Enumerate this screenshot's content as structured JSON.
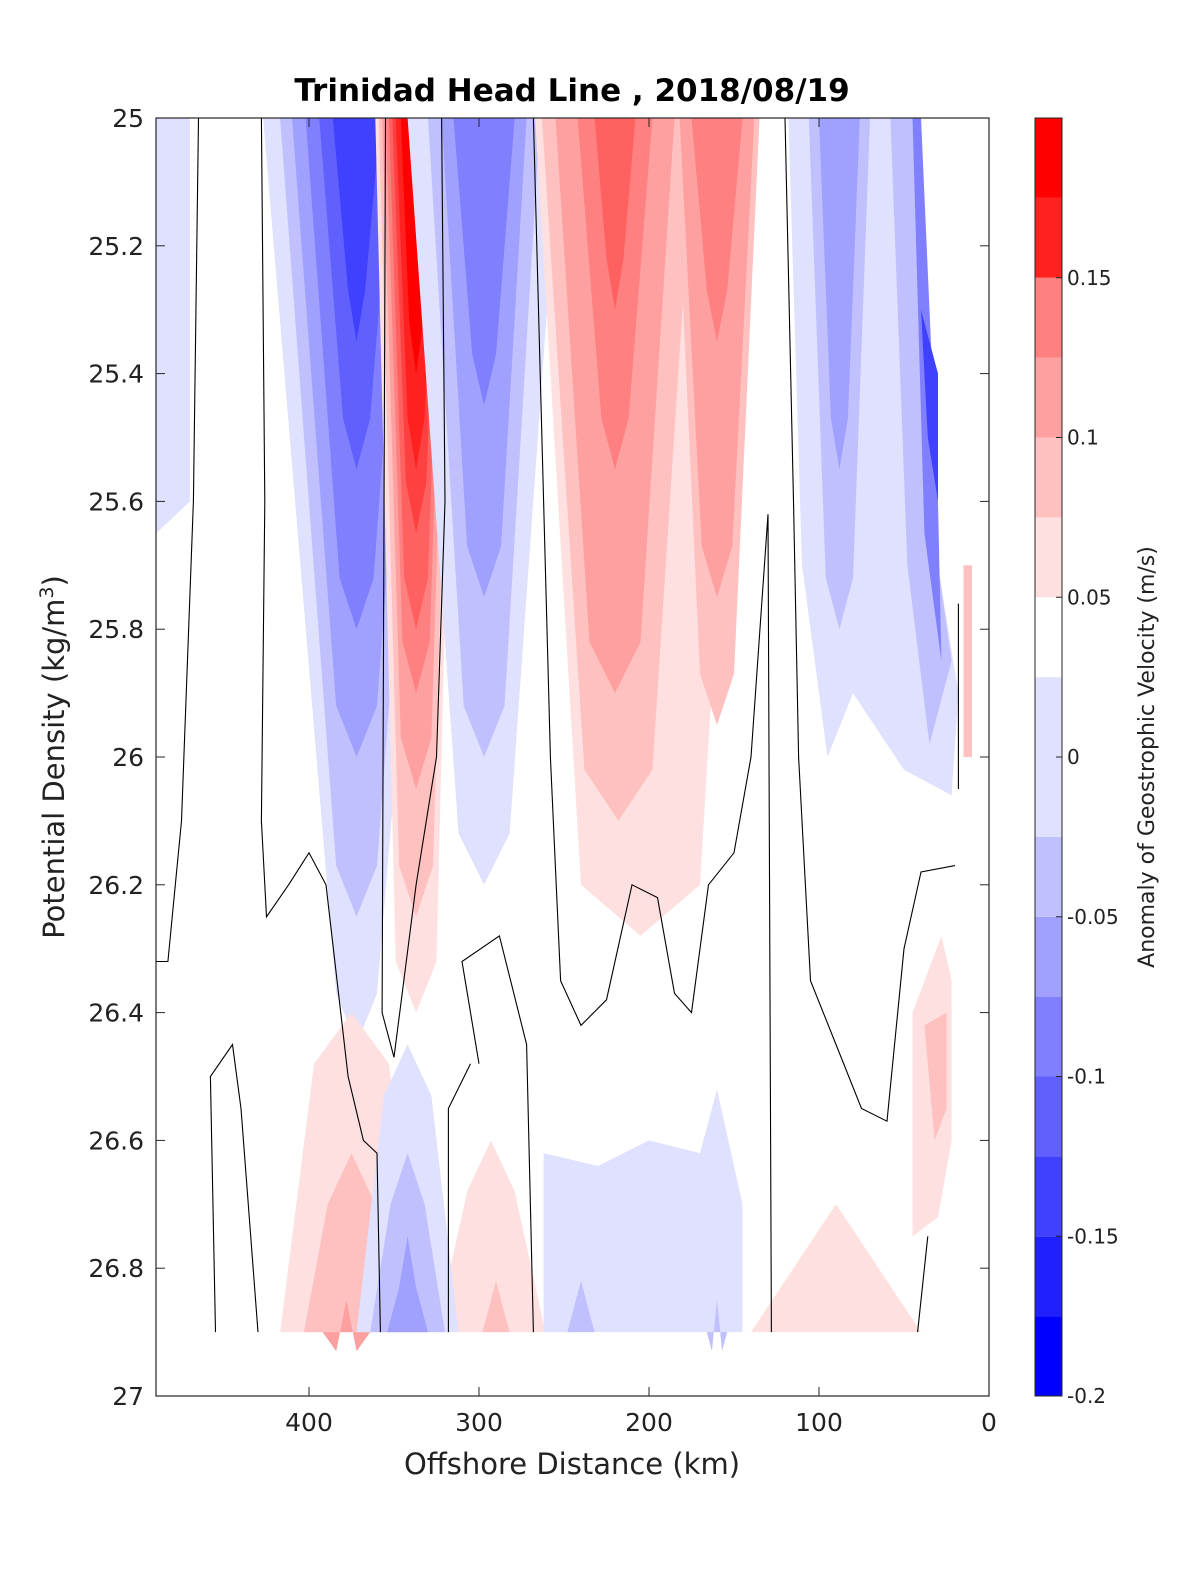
{
  "chart_data": {
    "type": "heatmap",
    "subtype": "filled-contour",
    "title": "Trinidad Head Line , 2018/08/19",
    "xlabel": "Offshore Distance (km)",
    "ylabel_main": "Potential Density (kg/m",
    "ylabel_sup": "3",
    "ylabel_end": ")",
    "xlim": [
      490,
      0
    ],
    "x_reversed": true,
    "ylim": [
      25,
      27
    ],
    "y_reversed": true,
    "x_ticks": [
      400,
      300,
      200,
      100,
      0
    ],
    "x_tick_labels": [
      "400",
      "300",
      "200",
      "100",
      "0"
    ],
    "y_ticks": [
      25,
      25.2,
      25.4,
      25.6,
      25.8,
      26,
      26.2,
      26.4,
      26.6,
      26.8,
      27
    ],
    "y_tick_labels": [
      "25",
      "25.2",
      "25.4",
      "25.6",
      "25.8",
      "26",
      "26.2",
      "26.4",
      "26.6",
      "26.8",
      "27"
    ],
    "data_bottom": 26.9,
    "colorbar": {
      "label": "Anomaly of Geostrophic Velocity (m/s)",
      "range": [
        -0.2,
        0.2
      ],
      "levels": [
        -0.2,
        -0.175,
        -0.15,
        -0.125,
        -0.1,
        -0.075,
        -0.05,
        -0.025,
        0.025,
        0.05,
        0.075,
        0.1,
        0.125,
        0.15,
        0.175,
        0.2
      ],
      "bin_colors": [
        "#0000ff",
        "#2020ff",
        "#4040ff",
        "#6060ff",
        "#8080ff",
        "#a0a0ff",
        "#c0c0ff",
        "#e0e0ff",
        "#ffffff",
        "#ffe0e0",
        "#ffc0c0",
        "#ffa0a0",
        "#ff8080",
        "#ff6060",
        "#ff4040",
        "#ff2020",
        "#ff0000"
      ],
      "tick_values": [
        -0.2,
        -0.15,
        -0.1,
        -0.05,
        0,
        0.05,
        0.1,
        0.15
      ],
      "tick_labels": [
        "-0.2",
        "-0.15",
        "-0.1",
        "-0.05",
        "0",
        "0.05",
        "0.1",
        "0.15"
      ]
    },
    "features": [
      {
        "kind": "core",
        "x": 370,
        "sigma": 25.1,
        "value": -0.16
      },
      {
        "kind": "core",
        "x": 335,
        "sigma": 25.1,
        "value": 0.19
      },
      {
        "kind": "core",
        "x": 295,
        "sigma": 25.1,
        "value": -0.11
      },
      {
        "kind": "core",
        "x": 220,
        "sigma": 25.1,
        "value": 0.13
      },
      {
        "kind": "core",
        "x": 160,
        "sigma": 25.1,
        "value": 0.12
      },
      {
        "kind": "core",
        "x": 30,
        "sigma": 25.5,
        "value": -0.15
      },
      {
        "kind": "core",
        "x": 375,
        "sigma": 26.8,
        "value": 0.08
      },
      {
        "kind": "core",
        "x": 340,
        "sigma": 26.8,
        "value": -0.11
      },
      {
        "kind": "core",
        "x": 290,
        "sigma": 26.85,
        "value": 0.07
      },
      {
        "kind": "core",
        "x": 230,
        "sigma": 26.85,
        "value": -0.06
      },
      {
        "kind": "core",
        "x": 30,
        "sigma": 26.5,
        "value": 0.08
      },
      {
        "kind": "core",
        "x": 90,
        "sigma": 26.8,
        "value": 0.04
      }
    ]
  }
}
